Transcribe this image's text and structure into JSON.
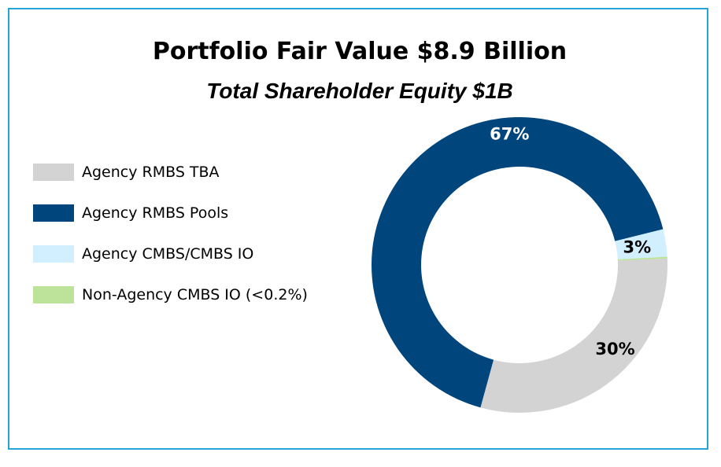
{
  "chart_data": {
    "type": "pie",
    "title": "Portfolio Fair Value $8.9 Billion",
    "subtitle": "Total Shareholder Equity $1B",
    "donut": true,
    "legend_position": "left",
    "slices": [
      {
        "name": "Agency RMBS TBA",
        "value": 30,
        "label": "30%",
        "color": "#d3d3d3",
        "label_color": "#000000"
      },
      {
        "name": "Agency RMBS Pools",
        "value": 67,
        "label": "67%",
        "color": "#00457c",
        "label_color": "#ffffff"
      },
      {
        "name": "Agency CMBS/CMBS IO",
        "value": 3,
        "label": "3%",
        "color": "#d2efff",
        "label_color": "#000000"
      },
      {
        "name": "Non-Agency CMBS IO (<0.2%)",
        "value": 0.2,
        "label": "",
        "color": "#bde39a",
        "label_color": "#000000"
      }
    ]
  }
}
